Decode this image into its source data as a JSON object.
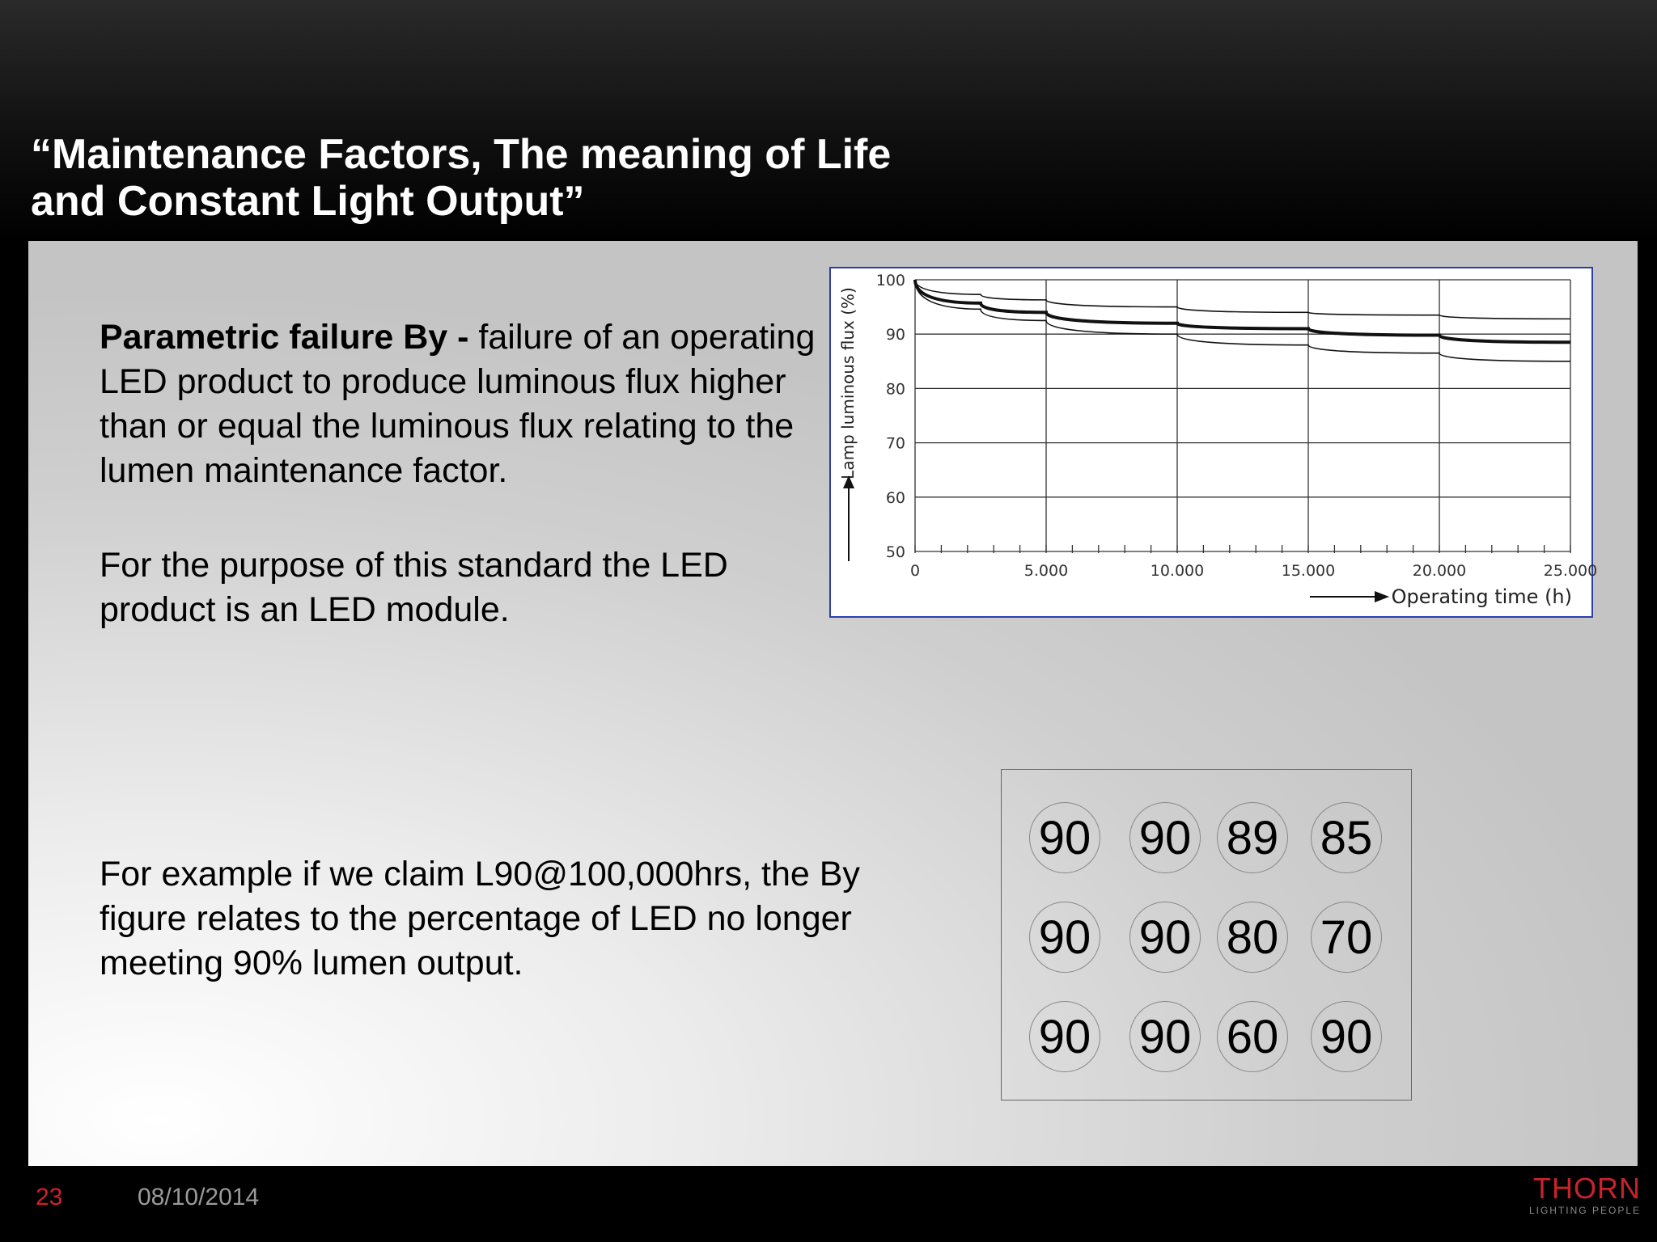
{
  "slide": {
    "title_line1": "“Maintenance Factors, The meaning of Life",
    "title_line2": "and Constant Light Output”",
    "para1_bold": "Parametric failure By -",
    "para1_text": " failure of an operating LED product to produce luminous flux higher than or equal the luminous flux relating to the lumen maintenance factor.",
    "para2": "For the purpose of this standard the LED product is an LED module.",
    "para3": "For example if we claim L90@100,000hrs, the By figure relates to the percentage of LED no longer meeting 90% lumen output.",
    "circles": [
      [
        "90",
        "90",
        "89",
        "85"
      ],
      [
        "90",
        "90",
        "80",
        "70"
      ],
      [
        "90",
        "90",
        "60",
        "90"
      ]
    ]
  },
  "footer": {
    "page_number": "23",
    "date": "08/10/2014",
    "logo_main": "THORN",
    "logo_sub": "LIGHTING PEOPLE"
  },
  "chart_data": {
    "type": "line",
    "ylabel": "Lamp luminous flux (%)",
    "xlabel": "Operating time (h)",
    "xlim": [
      0,
      25000
    ],
    "ylim": [
      50,
      100
    ],
    "x_ticks": [
      "0",
      "5.000",
      "10.000",
      "15.000",
      "20.000",
      "25.000"
    ],
    "y_ticks": [
      "50",
      "60",
      "70",
      "80",
      "90",
      "100"
    ],
    "grid": true,
    "series": [
      {
        "x": [
          0,
          2500,
          5000,
          10000,
          15000,
          20000,
          25000
        ],
        "values": [
          100,
          97.3,
          96.3,
          95.0,
          94.0,
          93.5,
          92.8
        ],
        "style": "thin"
      },
      {
        "x": [
          0,
          2500,
          5000,
          10000,
          15000,
          20000,
          25000
        ],
        "values": [
          100,
          95.7,
          94.0,
          92.0,
          91.0,
          89.8,
          88.5
        ],
        "style": "bold"
      },
      {
        "x": [
          0,
          2500,
          5000,
          10000,
          15000,
          20000,
          25000
        ],
        "values": [
          100,
          94.6,
          92.5,
          90.0,
          88.0,
          86.5,
          85.0
        ],
        "style": "thin"
      }
    ]
  }
}
